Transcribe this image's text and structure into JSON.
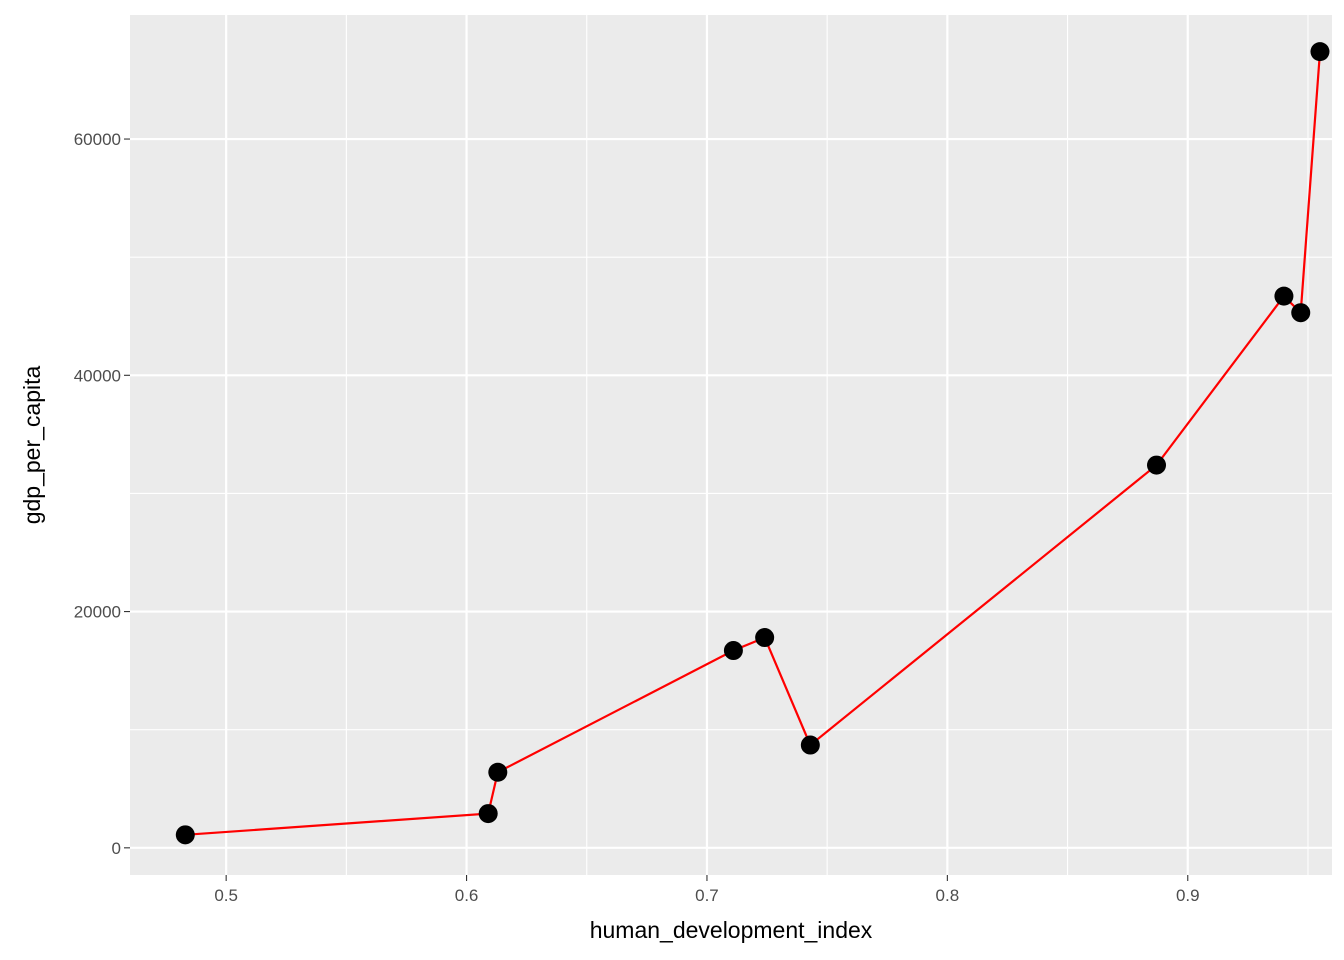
{
  "chart_data": {
    "type": "scatter",
    "xlabel": "human_development_index",
    "ylabel": "gdp_per_capita",
    "xlim": [
      0.46,
      0.96
    ],
    "ylim": [
      -2300,
      70500
    ],
    "x_ticks": [
      0.5,
      0.6,
      0.7,
      0.8,
      0.9
    ],
    "x_tick_labels": [
      "0.5",
      "0.6",
      "0.7",
      "0.8",
      "0.9"
    ],
    "x_minor_ticks": [
      0.55,
      0.65,
      0.75,
      0.85,
      0.95
    ],
    "y_ticks": [
      0,
      20000,
      40000,
      60000
    ],
    "y_tick_labels": [
      "0",
      "20000",
      "40000",
      "60000"
    ],
    "y_minor_ticks": [
      10000,
      30000,
      50000
    ],
    "grid": true,
    "line_color": "#ff0000",
    "point_color": "#000000",
    "panel_color": "#ebebeb",
    "points": [
      {
        "x": 0.483,
        "y": 1100
      },
      {
        "x": 0.609,
        "y": 2900
      },
      {
        "x": 0.613,
        "y": 6400
      },
      {
        "x": 0.711,
        "y": 16700
      },
      {
        "x": 0.724,
        "y": 17800
      },
      {
        "x": 0.743,
        "y": 8700
      },
      {
        "x": 0.887,
        "y": 32400
      },
      {
        "x": 0.94,
        "y": 46700
      },
      {
        "x": 0.947,
        "y": 45300
      },
      {
        "x": 0.955,
        "y": 67400
      }
    ]
  }
}
